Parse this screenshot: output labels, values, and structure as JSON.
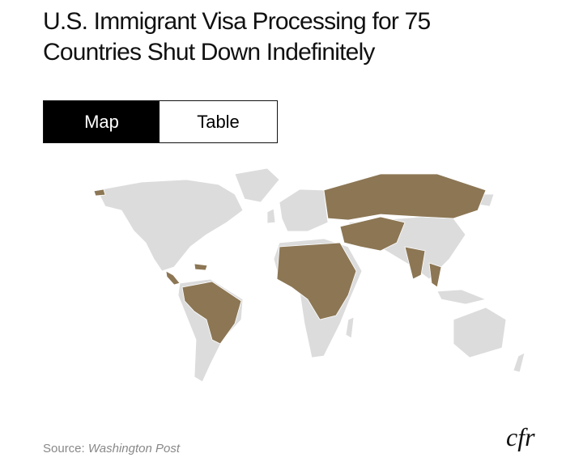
{
  "title": "U.S. Immigrant Visa Processing for 75 Countries Shut Down Indefinitely",
  "tabs": [
    "Map",
    "Table"
  ],
  "source": {
    "label": "Source:",
    "name": "Washington Post"
  },
  "logo": "cfr"
}
